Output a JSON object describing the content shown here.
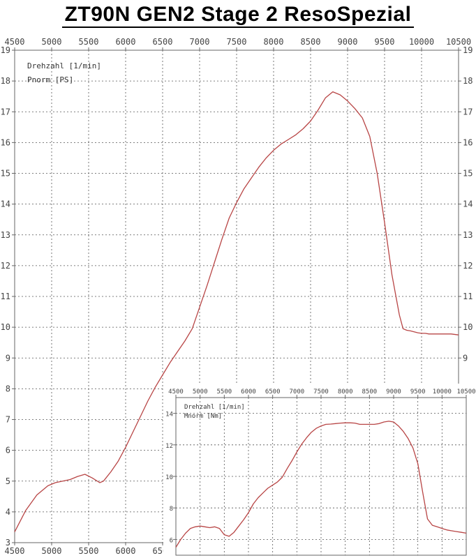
{
  "title": "ZT90N GEN2  Stage 2  ResoSpezial",
  "colors": {
    "curve": "#b84545",
    "grid": "#555555",
    "frame": "#666666",
    "background": "#ffffff"
  },
  "chart_data": [
    {
      "type": "line",
      "x_ticks": [
        4500,
        5000,
        5500,
        6000,
        6500,
        7000,
        7500,
        8000,
        8500,
        9000,
        9500,
        10000,
        10500
      ],
      "y_ticks": [
        3,
        4,
        5,
        6,
        7,
        8,
        9,
        10,
        11,
        12,
        13,
        14,
        15,
        16,
        17,
        18,
        19
      ],
      "xlim": [
        4500,
        10500
      ],
      "ylim": [
        3,
        19
      ],
      "grid": true,
      "legend_lines": [
        "Drehzahl [1/min]",
        "Pnorm [PS]"
      ],
      "series": [
        {
          "x": [
            4500,
            4650,
            4800,
            4950,
            5050,
            5150,
            5250,
            5350,
            5450,
            5550,
            5650,
            5700,
            5800,
            5900,
            6000,
            6100,
            6200,
            6300,
            6400,
            6500,
            6600,
            6700,
            6800,
            6900,
            7000,
            7100,
            7200,
            7300,
            7400,
            7500,
            7600,
            7700,
            7800,
            7900,
            8000,
            8100,
            8200,
            8300,
            8400,
            8500,
            8600,
            8700,
            8800,
            8900,
            9000,
            9100,
            9200,
            9300,
            9400,
            9500,
            9600,
            9700,
            9750,
            9800,
            9850,
            9900,
            9950,
            10000,
            10050,
            10100,
            10150,
            10200,
            10250,
            10300,
            10400,
            10500
          ],
          "y": [
            3.35,
            4.05,
            4.55,
            4.85,
            4.95,
            5.0,
            5.05,
            5.15,
            5.22,
            5.1,
            4.95,
            5.0,
            5.3,
            5.65,
            6.1,
            6.6,
            7.1,
            7.6,
            8.05,
            8.45,
            8.85,
            9.2,
            9.55,
            9.95,
            10.65,
            11.35,
            12.1,
            12.85,
            13.55,
            14.05,
            14.5,
            14.85,
            15.2,
            15.5,
            15.75,
            15.95,
            16.1,
            16.25,
            16.45,
            16.7,
            17.05,
            17.45,
            17.65,
            17.55,
            17.35,
            17.1,
            16.8,
            16.2,
            15.0,
            13.4,
            11.7,
            10.4,
            9.95,
            9.9,
            9.88,
            9.85,
            9.82,
            9.8,
            9.8,
            9.78,
            9.78,
            9.78,
            9.78,
            9.78,
            9.78,
            9.75
          ]
        }
      ]
    },
    {
      "type": "line",
      "x_ticks": [
        4500,
        5000,
        5500,
        6000,
        6500,
        7000,
        7500,
        8000,
        8500,
        9000,
        9500,
        10000,
        10500
      ],
      "y_ticks": [
        6,
        8,
        10,
        12,
        14
      ],
      "xlim": [
        4500,
        10500
      ],
      "ylim": [
        5,
        15
      ],
      "grid": true,
      "legend_lines": [
        "Drehzahl [1/min]",
        "Mnorm [Nm]"
      ],
      "series": [
        {
          "x": [
            4500,
            4600,
            4700,
            4800,
            4900,
            5000,
            5100,
            5200,
            5300,
            5400,
            5500,
            5600,
            5700,
            5800,
            5900,
            6000,
            6100,
            6200,
            6300,
            6400,
            6500,
            6600,
            6700,
            6800,
            6900,
            7000,
            7100,
            7200,
            7300,
            7400,
            7500,
            7600,
            7700,
            7800,
            7900,
            8000,
            8100,
            8200,
            8300,
            8400,
            8500,
            8600,
            8700,
            8800,
            8900,
            9000,
            9100,
            9200,
            9300,
            9400,
            9500,
            9600,
            9700,
            9800,
            9900,
            10000,
            10100,
            10200,
            10300,
            10400,
            10500
          ],
          "y": [
            5.5,
            6.0,
            6.4,
            6.7,
            6.8,
            6.85,
            6.8,
            6.75,
            6.8,
            6.7,
            6.3,
            6.2,
            6.45,
            6.85,
            7.25,
            7.7,
            8.25,
            8.65,
            8.95,
            9.25,
            9.45,
            9.65,
            9.95,
            10.5,
            11.0,
            11.55,
            12.05,
            12.45,
            12.8,
            13.05,
            13.2,
            13.3,
            13.32,
            13.35,
            13.38,
            13.4,
            13.4,
            13.38,
            13.3,
            13.3,
            13.3,
            13.3,
            13.35,
            13.45,
            13.5,
            13.45,
            13.2,
            12.85,
            12.4,
            11.8,
            10.8,
            9.0,
            7.3,
            6.9,
            6.8,
            6.7,
            6.6,
            6.55,
            6.5,
            6.45,
            6.4
          ]
        }
      ]
    }
  ]
}
